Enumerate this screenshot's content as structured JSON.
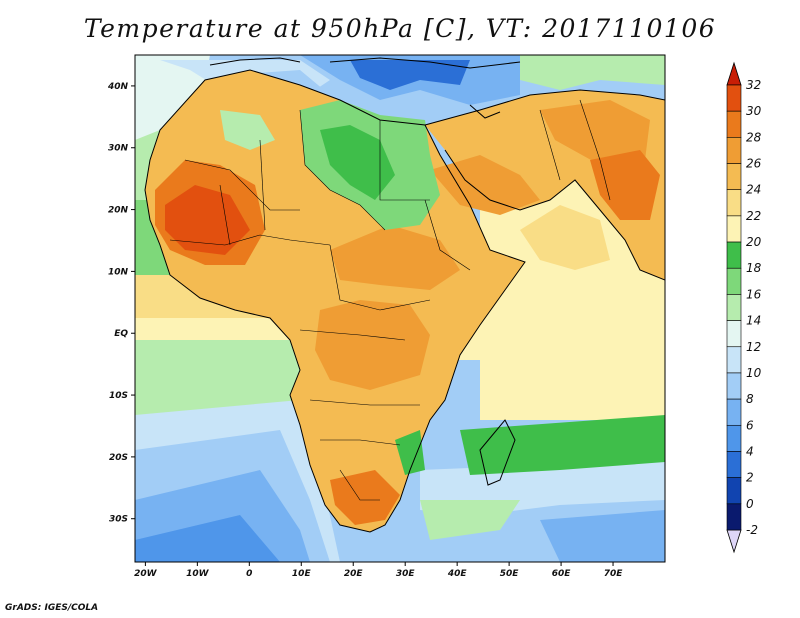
{
  "title": "Temperature at 950hPa [C], VT: 2017110106",
  "credit": "GrADS: IGES/COLA",
  "map": {
    "lon_range": [
      -22,
      80
    ],
    "lat_range": [
      -37,
      45
    ],
    "lon_ticks": [
      {
        "value": -20,
        "label": "20W"
      },
      {
        "value": -10,
        "label": "10W"
      },
      {
        "value": 0,
        "label": "0"
      },
      {
        "value": 10,
        "label": "10E"
      },
      {
        "value": 20,
        "label": "20E"
      },
      {
        "value": 30,
        "label": "30E"
      },
      {
        "value": 40,
        "label": "40E"
      },
      {
        "value": 50,
        "label": "50E"
      },
      {
        "value": 60,
        "label": "60E"
      },
      {
        "value": 70,
        "label": "70E"
      }
    ],
    "lat_ticks": [
      {
        "value": 40,
        "label": "40N"
      },
      {
        "value": 30,
        "label": "30N"
      },
      {
        "value": 20,
        "label": "20N"
      },
      {
        "value": 10,
        "label": "10N"
      },
      {
        "value": 0,
        "label": "EQ"
      },
      {
        "value": -10,
        "label": "10S"
      },
      {
        "value": -20,
        "label": "20S"
      },
      {
        "value": -30,
        "label": "30S"
      }
    ]
  },
  "colorbar": {
    "levels": [
      -2,
      0,
      2,
      4,
      6,
      8,
      10,
      12,
      14,
      16,
      18,
      20,
      22,
      24,
      26,
      28,
      30,
      32
    ],
    "colors": [
      "#0a1a6e",
      "#1144b0",
      "#2b6fd6",
      "#4f96ea",
      "#77b2f2",
      "#a2cdf6",
      "#c8e4f8",
      "#e4f6f2",
      "#b6ecae",
      "#7ed87a",
      "#3fbe4a",
      "#fdf3b5",
      "#f9dd86",
      "#f4bb52",
      "#ef9d34",
      "#ea7a1c",
      "#e2500f",
      "#c81e06"
    ],
    "under_color": "#ded6f8",
    "over_color": "#c81e06"
  }
}
